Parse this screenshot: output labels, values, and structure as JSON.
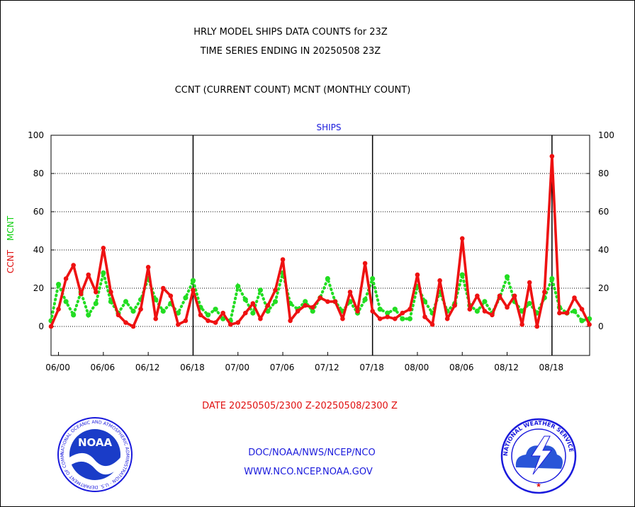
{
  "header": {
    "title_line1": "HRLY MODEL SHIPS DATA COUNTS for 23Z",
    "title_line2": "TIME SERIES ENDING IN 20250508 23Z",
    "subtitle": "CCNT (CURRENT COUNT) MCNT (MONTHLY COUNT)"
  },
  "footer": {
    "date_range": "DATE 20250505/2300 Z-20250508/2300 Z",
    "link1": "DOC/NOAA/NWS/NCEP/NCO",
    "link2": "WWW.NCO.NCEP.NOAA.GOV"
  },
  "logos": {
    "noaa_text": "NOAA",
    "noaa_ring": "NATIONAL OCEANIC AND ATMOSPHERIC ADMINISTRATION · U.S. DEPARTMENT OF COMMERCE ·",
    "nws_ring": "NATIONAL WEATHER SERVICE"
  },
  "chart_data": {
    "type": "line",
    "title": "SHIPS",
    "ylabel_left_ccnt": "CCNT",
    "ylabel_left_mcnt": "MCNT",
    "ylim": [
      -15,
      100
    ],
    "yticks": [
      0,
      20,
      40,
      60,
      80,
      100
    ],
    "xlim": [
      -1,
      71
    ],
    "xticks": [
      {
        "x": 0,
        "label": "06/00"
      },
      {
        "x": 6,
        "label": "06/06"
      },
      {
        "x": 12,
        "label": "06/12"
      },
      {
        "x": 18,
        "label": "06/18"
      },
      {
        "x": 24,
        "label": "07/00"
      },
      {
        "x": 30,
        "label": "07/06"
      },
      {
        "x": 36,
        "label": "07/12"
      },
      {
        "x": 42,
        "label": "07/18"
      },
      {
        "x": 48,
        "label": "08/00"
      },
      {
        "x": 54,
        "label": "08/06"
      },
      {
        "x": 60,
        "label": "08/12"
      },
      {
        "x": 66,
        "label": "08/18"
      }
    ],
    "day_lines": [
      18,
      42,
      66
    ],
    "grid": "horizontal-dotted",
    "series": [
      {
        "name": "CCNT",
        "color": "#ee1111",
        "style": "solid",
        "x": [
          -1,
          0,
          1,
          2,
          3,
          4,
          5,
          6,
          7,
          8,
          9,
          10,
          11,
          12,
          13,
          14,
          15,
          16,
          17,
          18,
          19,
          20,
          21,
          22,
          23,
          24,
          25,
          26,
          27,
          28,
          29,
          30,
          31,
          32,
          33,
          34,
          35,
          36,
          37,
          38,
          39,
          40,
          41,
          42,
          43,
          44,
          45,
          46,
          47,
          48,
          49,
          50,
          51,
          52,
          53,
          54,
          55,
          56,
          57,
          58,
          59,
          60,
          61,
          62,
          63,
          64,
          65,
          66,
          67,
          68,
          69,
          70,
          71
        ],
        "values": [
          0,
          9,
          25,
          32,
          17,
          27,
          18,
          41,
          18,
          6,
          2,
          0,
          9,
          31,
          4,
          20,
          16,
          1,
          3,
          19,
          6,
          3,
          2,
          7,
          1,
          2,
          7,
          12,
          4,
          11,
          19,
          35,
          3,
          8,
          11,
          10,
          15,
          13,
          13,
          4,
          18,
          8,
          33,
          8,
          4,
          5,
          4,
          7,
          9,
          27,
          5,
          1,
          24,
          4,
          11,
          46,
          9,
          16,
          8,
          6,
          16,
          10,
          16,
          1,
          23,
          0,
          18,
          89,
          7,
          7,
          15,
          9,
          1
        ]
      },
      {
        "name": "MCNT",
        "color": "#22dd22",
        "style": "dotted",
        "x": [
          -1,
          0,
          1,
          2,
          3,
          4,
          5,
          6,
          7,
          8,
          9,
          10,
          11,
          12,
          13,
          14,
          15,
          16,
          17,
          18,
          19,
          20,
          21,
          22,
          23,
          24,
          25,
          26,
          27,
          28,
          29,
          30,
          31,
          32,
          33,
          34,
          35,
          36,
          37,
          38,
          39,
          40,
          41,
          42,
          43,
          44,
          45,
          46,
          47,
          48,
          49,
          50,
          51,
          52,
          53,
          54,
          55,
          56,
          57,
          58,
          59,
          60,
          61,
          62,
          63,
          64,
          65,
          66,
          67,
          68,
          69,
          70,
          71
        ],
        "values": [
          3,
          22,
          13,
          6,
          18,
          6,
          12,
          28,
          13,
          7,
          13,
          8,
          14,
          25,
          14,
          8,
          12,
          7,
          15,
          24,
          10,
          6,
          9,
          4,
          3,
          21,
          14,
          7,
          19,
          8,
          13,
          28,
          12,
          9,
          13,
          8,
          15,
          25,
          13,
          8,
          13,
          7,
          14,
          25,
          9,
          7,
          9,
          4,
          4,
          21,
          13,
          7,
          18,
          8,
          12,
          27,
          11,
          8,
          13,
          7,
          15,
          26,
          13,
          8,
          12,
          7,
          15,
          25,
          10,
          7,
          8,
          3,
          4
        ]
      }
    ]
  }
}
